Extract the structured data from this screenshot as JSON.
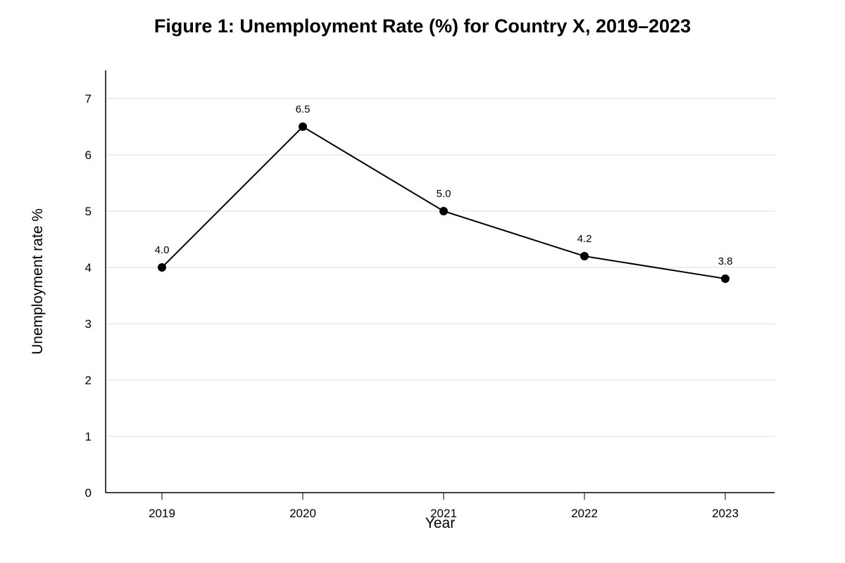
{
  "chart_data": {
    "type": "line",
    "title": "Figure 1: Unemployment Rate (%) for Country X, 2019–2023",
    "xlabel": "Year",
    "ylabel": "Unemployment rate %",
    "categories": [
      "2019",
      "2020",
      "2021",
      "2022",
      "2023"
    ],
    "series": [
      {
        "values": [
          4.0,
          6.5,
          5.0,
          4.2,
          3.8
        ]
      }
    ],
    "data_labels": [
      "4.0",
      "6.5",
      "5.0",
      "4.2",
      "3.8"
    ],
    "ylim": [
      0,
      7.5
    ],
    "yticks": [
      0,
      1,
      2,
      3,
      4,
      5,
      6,
      7
    ],
    "grid": "horizontal",
    "legend": "none",
    "line_color": "#000000",
    "grid_color": "#dddddd"
  }
}
